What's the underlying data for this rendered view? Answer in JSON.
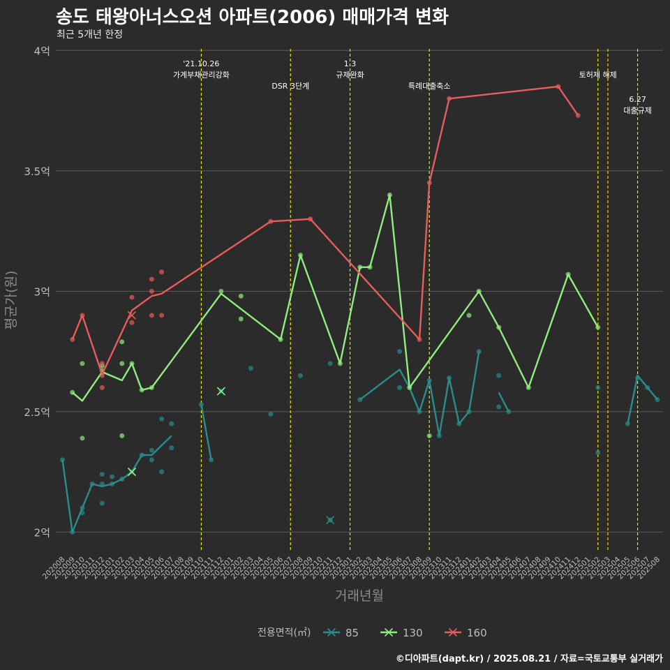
{
  "title": "송도 태왕아너스오션 아파트(2006) 매매가격 변화",
  "subtitle": "최근 5개년 한정",
  "caption": "©디아파트(dapt.kr) / 2025.08.21 / 자료=국토교통부 실거래가",
  "colors": {
    "background": "#2b2b2b",
    "grid": "#5a5a5a",
    "event_line": "#e6e600",
    "text": "#ffffff",
    "axis_text": "#bdbdbd"
  },
  "chart_data": {
    "type": "line",
    "xlabel": "거래년월",
    "ylabel": "평균가(원)",
    "yticks": [
      "2억",
      "2.5억",
      "3억",
      "3.5억",
      "4억"
    ],
    "ytick_values": [
      2.0,
      2.5,
      3.0,
      3.5,
      4.0
    ],
    "ylim": [
      1.92,
      4.05
    ],
    "grid": true,
    "legend": {
      "title": "전용면적(㎡)",
      "position": "bottom"
    },
    "x_categories": [
      "202008",
      "202009",
      "202010",
      "202011",
      "202012",
      "202101",
      "202102",
      "202103",
      "202104",
      "202105",
      "202106",
      "202107",
      "202108",
      "202109",
      "202110",
      "202111",
      "202112",
      "202201",
      "202202",
      "202203",
      "202204",
      "202205",
      "202206",
      "202207",
      "202208",
      "202209",
      "202210",
      "202211",
      "202212",
      "202301",
      "202302",
      "202303",
      "202304",
      "202305",
      "202306",
      "202307",
      "202308",
      "202309",
      "202310",
      "202311",
      "202312",
      "202401",
      "202402",
      "202403",
      "202404",
      "202405",
      "202406",
      "202407",
      "202408",
      "202409",
      "202410",
      "202411",
      "202412",
      "202501",
      "202502",
      "202503",
      "202504",
      "202505",
      "202506",
      "202507",
      "202508"
    ],
    "events": [
      {
        "x": "202110",
        "label": "'21.10.26\n가계부채관리강화",
        "row": 1
      },
      {
        "x": "202207",
        "label": "DSR 3단계",
        "row": 2
      },
      {
        "x": "202301",
        "label": "1.3\n규제완화",
        "row": 1
      },
      {
        "x": "202309",
        "label": "특례대출축소",
        "row": 2
      },
      {
        "x": "202502",
        "label": "토허제 해제",
        "row": 1.5
      },
      {
        "x": "202503",
        "label": "",
        "row": 0
      },
      {
        "x": "202506",
        "label": "6.27\n대출규제",
        "row": 2.6
      }
    ],
    "series": [
      {
        "name": "85",
        "color": "#2a8c8c",
        "line_segments": [
          [
            [
              "202008",
              2.3
            ],
            [
              "202009",
              2.0
            ],
            [
              "202010",
              2.1
            ],
            [
              "202011",
              2.2
            ],
            [
              "202012",
              2.19
            ],
            [
              "202101",
              2.2
            ],
            [
              "202102",
              2.22
            ],
            [
              "202103",
              2.25
            ],
            [
              "202104",
              2.32
            ],
            [
              "202105",
              2.32
            ],
            [
              "202107",
              2.4
            ]
          ],
          [
            [
              "202110",
              2.53
            ],
            [
              "202111",
              2.3
            ]
          ],
          [
            [
              "202302",
              2.55
            ],
            [
              "202306",
              2.675
            ],
            [
              "202307",
              2.6
            ],
            [
              "202308",
              2.5
            ],
            [
              "202309",
              2.63
            ],
            [
              "202310",
              2.4
            ],
            [
              "202311",
              2.64
            ],
            [
              "202312",
              2.45
            ],
            [
              "202401",
              2.5
            ],
            [
              "202402",
              2.75
            ]
          ],
          [
            [
              "202404",
              2.58
            ],
            [
              "202405",
              2.5
            ]
          ],
          [
            [
              "202505",
              2.45
            ],
            [
              "202506",
              2.65
            ],
            [
              "202507",
              2.6
            ],
            [
              "202508",
              2.55
            ]
          ]
        ],
        "points": [
          [
            "202008",
            2.3
          ],
          [
            "202009",
            2.0
          ],
          [
            "202010",
            2.08
          ],
          [
            "202010",
            2.1
          ],
          [
            "202011",
            2.2
          ],
          [
            "202012",
            2.12
          ],
          [
            "202012",
            2.2
          ],
          [
            "202012",
            2.24
          ],
          [
            "202101",
            2.2
          ],
          [
            "202101",
            2.23
          ],
          [
            "202102",
            2.22
          ],
          [
            "202103",
            2.25
          ],
          [
            "202104",
            2.32
          ],
          [
            "202105",
            2.3
          ],
          [
            "202105",
            2.34
          ],
          [
            "202106",
            2.25
          ],
          [
            "202106",
            2.47
          ],
          [
            "202107",
            2.35
          ],
          [
            "202107",
            2.45
          ],
          [
            "202110",
            2.53
          ],
          [
            "202111",
            2.3
          ],
          [
            "202112",
            2.585
          ],
          [
            "202203",
            2.68
          ],
          [
            "202205",
            2.49
          ],
          [
            "202208",
            2.65
          ],
          [
            "202211",
            2.05
          ],
          [
            "202211",
            2.7
          ],
          [
            "202302",
            2.55
          ],
          [
            "202306",
            2.6
          ],
          [
            "202306",
            2.75
          ],
          [
            "202307",
            2.6
          ],
          [
            "202308",
            2.5
          ],
          [
            "202309",
            2.63
          ],
          [
            "202310",
            2.4
          ],
          [
            "202311",
            2.64
          ],
          [
            "202312",
            2.45
          ],
          [
            "202401",
            2.5
          ],
          [
            "202402",
            2.75
          ],
          [
            "202404",
            2.52
          ],
          [
            "202404",
            2.65
          ],
          [
            "202405",
            2.5
          ],
          [
            "202502",
            2.33
          ],
          [
            "202502",
            2.6
          ],
          [
            "202505",
            2.45
          ],
          [
            "202506",
            2.64
          ],
          [
            "202507",
            2.6
          ],
          [
            "202508",
            2.55
          ]
        ],
        "x_markers": [
          [
            "202103",
            2.25
          ],
          [
            "202112",
            2.585
          ],
          [
            "202211",
            2.05
          ]
        ]
      },
      {
        "name": "130",
        "color": "#90ee7e",
        "line_segments": [
          [
            [
              "202009",
              2.58
            ],
            [
              "202010",
              2.545
            ],
            [
              "202012",
              2.665
            ],
            [
              "202102",
              2.63
            ],
            [
              "202103",
              2.7
            ],
            [
              "202104",
              2.59
            ],
            [
              "202105",
              2.6
            ],
            [
              "202112",
              2.99
            ],
            [
              "202206",
              2.8
            ],
            [
              "202208",
              3.15
            ],
            [
              "202212",
              2.7
            ],
            [
              "202302",
              3.1
            ],
            [
              "202303",
              3.1
            ],
            [
              "202305",
              3.4
            ],
            [
              "202307",
              2.6
            ],
            [
              "202402",
              3.0
            ],
            [
              "202404",
              2.85
            ],
            [
              "202407",
              2.6
            ],
            [
              "202411",
              3.07
            ],
            [
              "202502",
              2.85
            ]
          ]
        ],
        "points": [
          [
            "202009",
            2.58
          ],
          [
            "202010",
            2.39
          ],
          [
            "202010",
            2.7
          ],
          [
            "202012",
            2.67
          ],
          [
            "202012",
            2.69
          ],
          [
            "202102",
            2.4
          ],
          [
            "202102",
            2.7
          ],
          [
            "202102",
            2.79
          ],
          [
            "202103",
            2.7
          ],
          [
            "202104",
            2.59
          ],
          [
            "202105",
            2.6
          ],
          [
            "202112",
            3.0
          ],
          [
            "202202",
            2.885
          ],
          [
            "202202",
            2.98
          ],
          [
            "202206",
            2.8
          ],
          [
            "202208",
            3.15
          ],
          [
            "202212",
            2.7
          ],
          [
            "202302",
            3.1
          ],
          [
            "202303",
            3.1
          ],
          [
            "202305",
            3.4
          ],
          [
            "202307",
            2.6
          ],
          [
            "202309",
            2.4
          ],
          [
            "202401",
            2.9
          ],
          [
            "202402",
            3.0
          ],
          [
            "202404",
            2.85
          ],
          [
            "202407",
            2.6
          ],
          [
            "202411",
            3.07
          ],
          [
            "202502",
            2.85
          ]
        ],
        "x_markers": [
          [
            "202103",
            2.25
          ],
          [
            "202112",
            2.585
          ]
        ]
      },
      {
        "name": "160",
        "color": "#e85c5c",
        "line_segments": [
          [
            [
              "202009",
              2.8
            ],
            [
              "202010",
              2.9
            ],
            [
              "202012",
              2.655
            ],
            [
              "202103",
              2.92
            ],
            [
              "202105",
              2.98
            ],
            [
              "202106",
              2.99
            ],
            [
              "202205",
              3.29
            ],
            [
              "202209",
              3.3
            ],
            [
              "202308",
              2.8
            ],
            [
              "202309",
              3.45
            ],
            [
              "202311",
              3.8
            ],
            [
              "202410",
              3.85
            ],
            [
              "202412",
              3.73
            ]
          ]
        ],
        "points": [
          [
            "202009",
            2.8
          ],
          [
            "202010",
            2.9
          ],
          [
            "202012",
            2.6
          ],
          [
            "202012",
            2.65
          ],
          [
            "202012",
            2.7
          ],
          [
            "202103",
            2.87
          ],
          [
            "202103",
            2.975
          ],
          [
            "202105",
            2.9
          ],
          [
            "202105",
            3.0
          ],
          [
            "202105",
            3.05
          ],
          [
            "202106",
            2.9
          ],
          [
            "202106",
            3.08
          ],
          [
            "202205",
            3.29
          ],
          [
            "202209",
            3.3
          ],
          [
            "202308",
            2.8
          ],
          [
            "202309",
            3.45
          ],
          [
            "202311",
            3.8
          ],
          [
            "202410",
            3.85
          ],
          [
            "202412",
            3.73
          ]
        ],
        "x_markers": [
          [
            "202103",
            2.9
          ]
        ]
      }
    ]
  }
}
